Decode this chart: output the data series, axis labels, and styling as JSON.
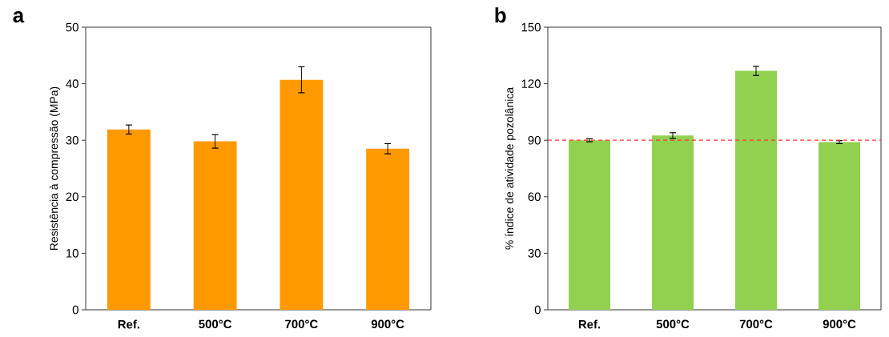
{
  "chart_data": [
    {
      "type": "bar",
      "title": "a",
      "ylabel": "Resistência à compressão (MPa)",
      "categories": [
        "Ref.",
        "500°C",
        "700°C",
        "900°C"
      ],
      "values": [
        31.9,
        29.8,
        40.7,
        28.5
      ],
      "errors": [
        0.8,
        1.2,
        2.3,
        0.9
      ],
      "color": "#ff9900",
      "ylim": [
        0,
        50
      ],
      "yticks": [
        0,
        10,
        20,
        30,
        40,
        50
      ]
    },
    {
      "type": "bar",
      "title": "b",
      "ylabel": "% índice de atividade  pozolânica",
      "categories": [
        "Ref.",
        "500°C",
        "700°C",
        "900°C"
      ],
      "values": [
        90,
        92.5,
        126.8,
        89
      ],
      "errors": [
        0.8,
        1.5,
        2.4,
        0.8
      ],
      "color": "#92d050",
      "ylim": [
        0,
        150
      ],
      "yticks": [
        0,
        30,
        60,
        90,
        120,
        150
      ],
      "ref_lines": [
        {
          "axis": "y",
          "value": 90,
          "color": "#ff3333",
          "line_style": "dashed"
        }
      ]
    }
  ]
}
